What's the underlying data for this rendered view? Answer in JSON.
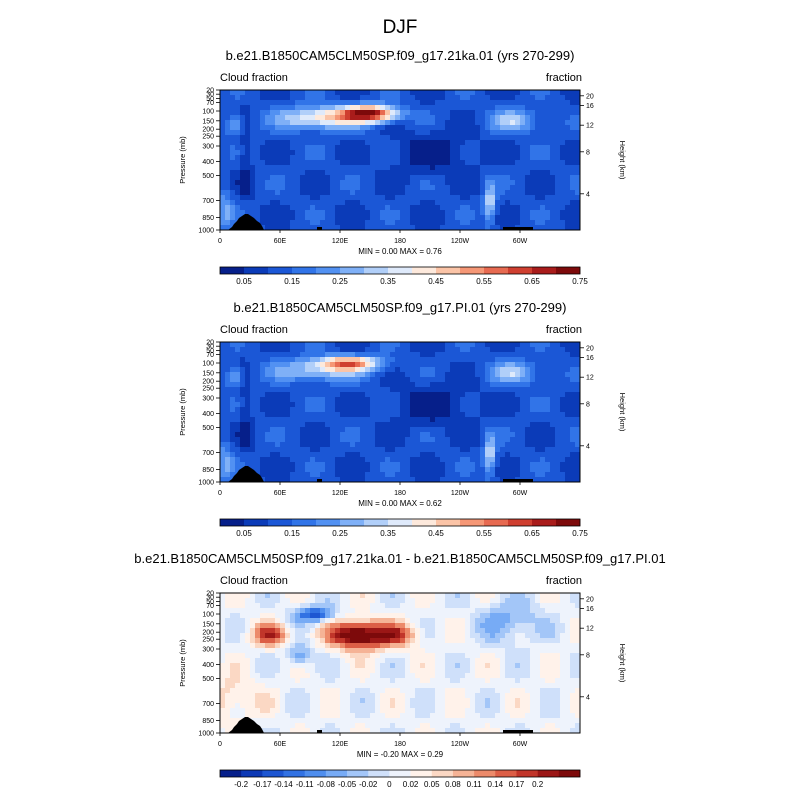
{
  "figure": {
    "title": "DJF"
  },
  "chart_data": [
    {
      "type": "heatmap",
      "title": "b.e21.B1850CAM5CLM50SP.f09_g17.21ka.01 (yrs 270-299)",
      "left_label": "Cloud fraction",
      "right_label": "fraction",
      "xlabel": "",
      "ylabel": "Pressure (mb)",
      "ylabel_right": "Height (km)",
      "x_ticks": [
        "0",
        "60E",
        "120E",
        "180",
        "120W",
        "60W"
      ],
      "y_ticks": [
        "20",
        "30",
        "50",
        "70",
        "100",
        "150",
        "200",
        "250",
        "300",
        "400",
        "500",
        "700",
        "850",
        "1000"
      ],
      "height_ticks": [
        "20",
        "16",
        "12",
        "8",
        "4"
      ],
      "min": 0.0,
      "max": 0.76,
      "minmax_text": "MIN =   0.00   MAX =   0.76",
      "colorbar_labels": [
        "0.05",
        "0.15",
        "0.25",
        "0.35",
        "0.45",
        "0.55",
        "0.65",
        "0.75"
      ]
    },
    {
      "type": "heatmap",
      "title": "b.e21.B1850CAM5CLM50SP.f09_g17.PI.01 (yrs 270-299)",
      "left_label": "Cloud fraction",
      "right_label": "fraction",
      "xlabel": "",
      "ylabel": "Pressure (mb)",
      "ylabel_right": "Height (km)",
      "x_ticks": [
        "0",
        "60E",
        "120E",
        "180",
        "120W",
        "60W"
      ],
      "y_ticks": [
        "20",
        "30",
        "50",
        "70",
        "100",
        "150",
        "200",
        "250",
        "300",
        "400",
        "500",
        "700",
        "850",
        "1000"
      ],
      "height_ticks": [
        "20",
        "16",
        "12",
        "8",
        "4"
      ],
      "min": 0.0,
      "max": 0.62,
      "minmax_text": "MIN =   0.00   MAX =   0.62",
      "colorbar_labels": [
        "0.05",
        "0.15",
        "0.25",
        "0.35",
        "0.45",
        "0.55",
        "0.65",
        "0.75"
      ]
    },
    {
      "type": "heatmap",
      "title": "b.e21.B1850CAM5CLM50SP.f09_g17.21ka.01 - b.e21.B1850CAM5CLM50SP.f09_g17.PI.01",
      "left_label": "Cloud fraction",
      "right_label": "fraction",
      "xlabel": "",
      "ylabel": "Pressure (mb)",
      "ylabel_right": "Height (km)",
      "x_ticks": [
        "0",
        "60E",
        "120E",
        "180",
        "120W",
        "60W"
      ],
      "y_ticks": [
        "20",
        "30",
        "50",
        "70",
        "100",
        "150",
        "200",
        "250",
        "300",
        "400",
        "500",
        "700",
        "850",
        "1000"
      ],
      "height_ticks": [
        "20",
        "16",
        "12",
        "8",
        "4"
      ],
      "min": -0.2,
      "max": 0.29,
      "minmax_text": "MIN =  -0.20   MAX =   0.29",
      "colorbar_labels": [
        "-0.2",
        "-0.17",
        "-0.14",
        "-0.11",
        "-0.08",
        "-0.05",
        "-0.02",
        "0",
        "0.02",
        "0.05",
        "0.08",
        "0.11",
        "0.14",
        "0.17",
        "0.2"
      ]
    }
  ]
}
